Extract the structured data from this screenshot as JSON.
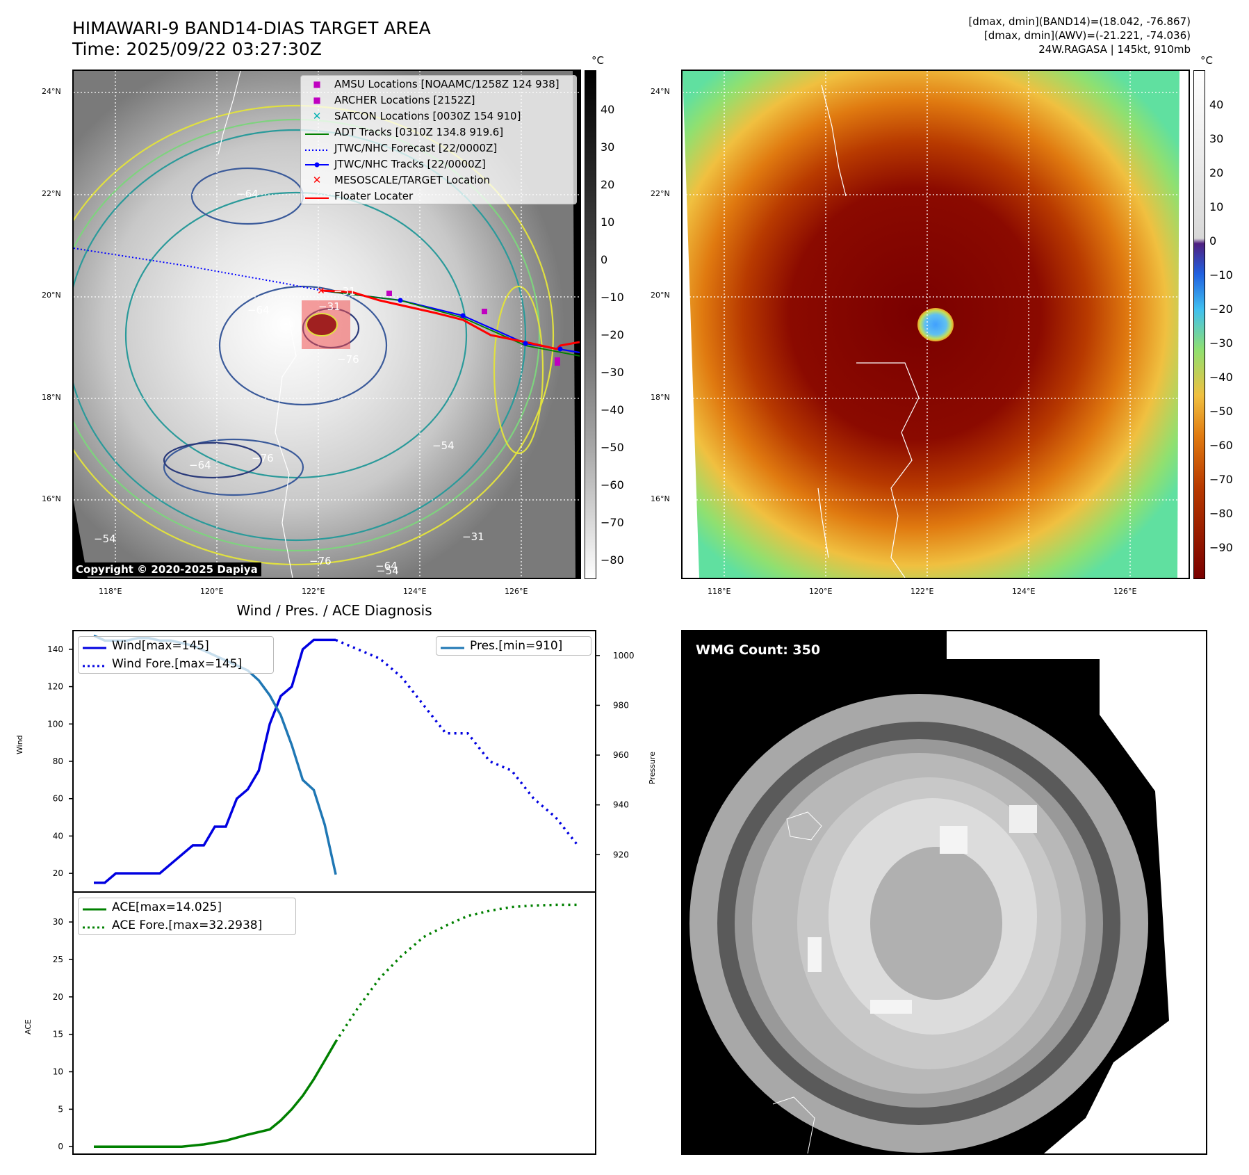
{
  "header": {
    "title_line1": "HIMAWARI-9 BAND14-DIAS TARGET AREA",
    "title_line2": "Time: 2025/09/22 03:27:30Z",
    "dmax_band14": "[dmax, dmin](BAND14)=(18.042, -76.867)",
    "dmax_awv": "[dmax, dmin](AWV)=(-21.221, -74.036)",
    "storm": "24W.RAGASA | 145kt, 910mb"
  },
  "maps": {
    "lat_labels": [
      "24°N",
      "22°N",
      "20°N",
      "18°N",
      "16°N"
    ],
    "lon_labels": [
      "118°E",
      "120°E",
      "122°E",
      "124°E",
      "126°E"
    ],
    "unit": "°C",
    "cb_left_ticks": [
      "40",
      "30",
      "20",
      "10",
      "0",
      "−10",
      "−20",
      "−30",
      "−40",
      "−50",
      "−60",
      "−70",
      "−80"
    ],
    "cb_right_ticks": [
      "40",
      "30",
      "20",
      "10",
      "0",
      "−10",
      "−20",
      "−30",
      "−40",
      "−50",
      "−60",
      "−70",
      "−80",
      "−90"
    ],
    "copyright": "Copyright © 2020-2025 Dapiya",
    "contour_labels": [
      "−64",
      "−31",
      "−76",
      "−64",
      "−76",
      "−64",
      "−54",
      "−31",
      "−64",
      "−76",
      "−54",
      "−31",
      "−54"
    ],
    "legend": [
      {
        "label": "AMSU Locations [NOAAMC/1258Z 124 938]",
        "color": "#c000c0",
        "symbol": "square"
      },
      {
        "label": "ARCHER Locations [2152Z]",
        "color": "#c000c0",
        "symbol": "square"
      },
      {
        "label": "SATCON Locations [0030Z 154 910]",
        "color": "#00b0b0",
        "symbol": "x"
      },
      {
        "label": "ADT Tracks [0310Z 134.8 919.6]",
        "color": "#008000",
        "symbol": "line"
      },
      {
        "label": "JTWC/NHC Forecast [22/0000Z]",
        "color": "#0000ff",
        "symbol": "dotted"
      },
      {
        "label": "JTWC/NHC Tracks [22/0000Z]",
        "color": "#0000ff",
        "symbol": "linedot"
      },
      {
        "label": "MESOSCALE/TARGET Location",
        "color": "#ff0000",
        "symbol": "x"
      },
      {
        "label": "Floater Locater",
        "color": "#ff0000",
        "symbol": "line"
      }
    ]
  },
  "chart_data": [
    {
      "type": "line",
      "title": "Wind / Pres. / ACE Diagnosis",
      "ylabel": "Wind",
      "ylabel_right": "Pressure",
      "ylim": [
        10,
        150
      ],
      "ylim_right": [
        905,
        1010
      ],
      "y_ticks": [
        20,
        40,
        60,
        80,
        100,
        120,
        140
      ],
      "y_ticks_right": [
        920,
        940,
        960,
        980,
        1000
      ],
      "series": [
        {
          "name": "Wind[max=145]",
          "color": "#0000e0",
          "style": "solid",
          "x": [
            0,
            1,
            2,
            3,
            4,
            5,
            6,
            7,
            8,
            9,
            10,
            11,
            12,
            13,
            14,
            15,
            16,
            17,
            18,
            19,
            20,
            21,
            22
          ],
          "values": [
            15,
            15,
            20,
            20,
            20,
            20,
            20,
            25,
            30,
            35,
            35,
            45,
            45,
            60,
            65,
            75,
            100,
            115,
            120,
            140,
            145,
            145,
            145
          ]
        },
        {
          "name": "Wind Fore.[max=145]",
          "color": "#0000e0",
          "style": "dotted",
          "x": [
            22,
            24,
            26,
            28,
            30,
            32,
            34,
            36,
            38,
            40,
            42,
            44
          ],
          "values": [
            145,
            140,
            135,
            125,
            110,
            95,
            95,
            80,
            75,
            60,
            50,
            35
          ]
        },
        {
          "name": "Pres.[min=910]",
          "color": "#1f77b4",
          "style": "solid",
          "axis": "right",
          "x": [
            0,
            1,
            2,
            3,
            4,
            5,
            6,
            7,
            8,
            9,
            10,
            11,
            12,
            13,
            14,
            15,
            16,
            17,
            18,
            19,
            20,
            21,
            22
          ],
          "values": [
            1008,
            1006,
            1006,
            1006,
            1007,
            1007,
            1006,
            1006,
            1005,
            1004,
            1002,
            1000,
            998,
            996,
            994,
            990,
            984,
            976,
            964,
            950,
            946,
            932,
            912
          ]
        }
      ]
    },
    {
      "type": "line",
      "ylabel": "ACE",
      "ylim": [
        -1,
        34
      ],
      "y_ticks": [
        0,
        5,
        10,
        15,
        20,
        25,
        30
      ],
      "series": [
        {
          "name": "ACE[max=14.025]",
          "color": "#008000",
          "style": "solid",
          "x": [
            0,
            2,
            4,
            6,
            8,
            10,
            12,
            14,
            16,
            17,
            18,
            19,
            20,
            21,
            22
          ],
          "values": [
            0,
            0,
            0,
            0,
            0,
            0.3,
            0.8,
            1.6,
            2.3,
            3.5,
            5,
            6.8,
            9,
            11.5,
            14.025
          ]
        },
        {
          "name": "ACE Fore.[max=32.2938]",
          "color": "#008000",
          "style": "dotted",
          "x": [
            22,
            24,
            26,
            28,
            30,
            32,
            34,
            36,
            38,
            40,
            42,
            44
          ],
          "values": [
            14.025,
            18.5,
            22.5,
            25.5,
            28,
            29.5,
            30.8,
            31.5,
            32,
            32.2,
            32.29,
            32.29
          ]
        }
      ]
    }
  ],
  "wmg": {
    "label": "WMG Count: 350"
  }
}
